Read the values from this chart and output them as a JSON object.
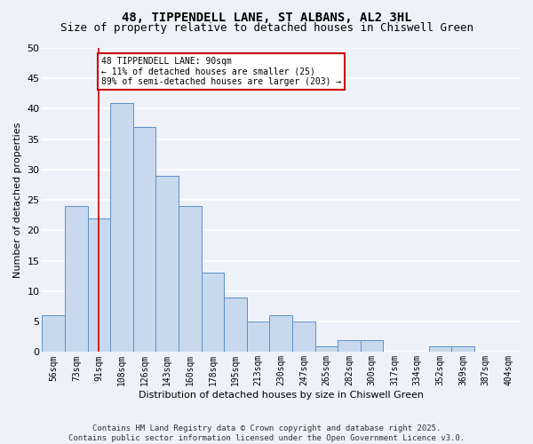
{
  "title_line1": "48, TIPPENDELL LANE, ST ALBANS, AL2 3HL",
  "title_line2": "Size of property relative to detached houses in Chiswell Green",
  "xlabel": "Distribution of detached houses by size in Chiswell Green",
  "ylabel": "Number of detached properties",
  "categories": [
    "56sqm",
    "73sqm",
    "91sqm",
    "108sqm",
    "126sqm",
    "143sqm",
    "160sqm",
    "178sqm",
    "195sqm",
    "213sqm",
    "230sqm",
    "247sqm",
    "265sqm",
    "282sqm",
    "300sqm",
    "317sqm",
    "334sqm",
    "352sqm",
    "369sqm",
    "387sqm",
    "404sqm"
  ],
  "values": [
    6,
    24,
    22,
    41,
    37,
    29,
    24,
    13,
    9,
    5,
    6,
    5,
    1,
    2,
    2,
    0,
    0,
    1,
    1,
    0,
    0
  ],
  "bar_color": "#c9d9ed",
  "bar_edge_color": "#5b8fc9",
  "red_line_index": 2,
  "annotation_line1": "48 TIPPENDELL LANE: 90sqm",
  "annotation_line2": "← 11% of detached houses are smaller (25)",
  "annotation_line3": "89% of semi-detached houses are larger (203) →",
  "annotation_box_color": "#ffffff",
  "annotation_border_color": "#cc0000",
  "ylim": [
    0,
    50
  ],
  "yticks": [
    0,
    5,
    10,
    15,
    20,
    25,
    30,
    35,
    40,
    45,
    50
  ],
  "footer_line1": "Contains HM Land Registry data © Crown copyright and database right 2025.",
  "footer_line2": "Contains public sector information licensed under the Open Government Licence v3.0.",
  "background_color": "#eef2f8",
  "grid_color": "#ffffff",
  "title_fontsize": 10,
  "subtitle_fontsize": 9,
  "tick_fontsize": 7,
  "ylabel_fontsize": 8,
  "xlabel_fontsize": 8,
  "footer_fontsize": 6.5,
  "annotation_fontsize": 7
}
